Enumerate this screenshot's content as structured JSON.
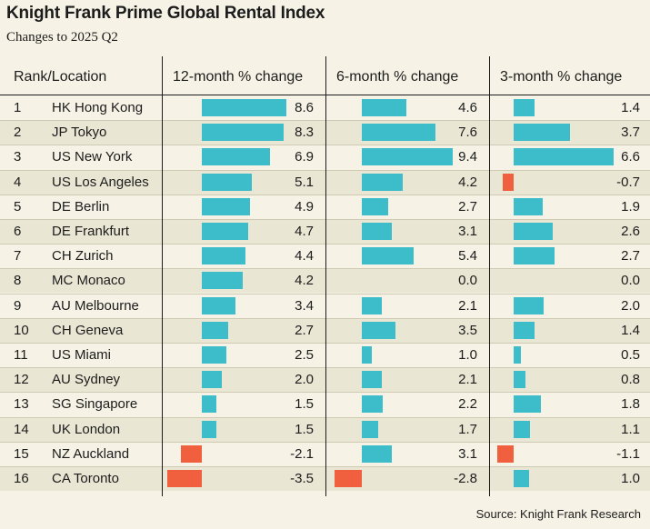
{
  "title": "Knight Frank Prime Global Rental Index",
  "subtitle": "Changes to 2025 Q2",
  "source": "Source: Knight Frank Research",
  "colors": {
    "positive": "#3cbdc9",
    "negative": "#f0603f"
  },
  "chart_data": {
    "type": "table",
    "columns": [
      "Rank/Location",
      "12-month % change",
      "6-month % change",
      "3-month % change"
    ],
    "rows": [
      {
        "rank": "1",
        "location": "HK Hong Kong",
        "m12": 8.6,
        "m6": 4.6,
        "m3": 1.4,
        "m12_label": "8.6",
        "m6_label": "4.6",
        "m3_label": "1.4"
      },
      {
        "rank": "2",
        "location": "JP Tokyo",
        "m12": 8.3,
        "m6": 7.6,
        "m3": 3.7,
        "m12_label": "8.3",
        "m6_label": "7.6",
        "m3_label": "3.7"
      },
      {
        "rank": "3",
        "location": "US New York",
        "m12": 6.9,
        "m6": 9.4,
        "m3": 6.6,
        "m12_label": "6.9",
        "m6_label": "9.4",
        "m3_label": "6.6"
      },
      {
        "rank": "4",
        "location": "US Los Angeles",
        "m12": 5.1,
        "m6": 4.2,
        "m3": -0.7,
        "m12_label": "5.1",
        "m6_label": "4.2",
        "m3_label": "-0.7"
      },
      {
        "rank": "5",
        "location": "DE Berlin",
        "m12": 4.9,
        "m6": 2.7,
        "m3": 1.9,
        "m12_label": "4.9",
        "m6_label": "2.7",
        "m3_label": "1.9"
      },
      {
        "rank": "6",
        "location": "DE Frankfurt",
        "m12": 4.7,
        "m6": 3.1,
        "m3": 2.6,
        "m12_label": "4.7",
        "m6_label": "3.1",
        "m3_label": "2.6"
      },
      {
        "rank": "7",
        "location": "CH Zurich",
        "m12": 4.4,
        "m6": 5.4,
        "m3": 2.7,
        "m12_label": "4.4",
        "m6_label": "5.4",
        "m3_label": "2.7"
      },
      {
        "rank": "8",
        "location": "MC Monaco",
        "m12": 4.2,
        "m6": 0.0,
        "m3": 0.0,
        "m12_label": "4.2",
        "m6_label": "0.0",
        "m3_label": "0.0"
      },
      {
        "rank": "9",
        "location": "AU Melbourne",
        "m12": 3.4,
        "m6": 2.1,
        "m3": 2.0,
        "m12_label": "3.4",
        "m6_label": "2.1",
        "m3_label": "2.0"
      },
      {
        "rank": "10",
        "location": "CH Geneva",
        "m12": 2.7,
        "m6": 3.5,
        "m3": 1.4,
        "m12_label": "2.7",
        "m6_label": "3.5",
        "m3_label": "1.4"
      },
      {
        "rank": "11",
        "location": "US Miami",
        "m12": 2.5,
        "m6": 1.0,
        "m3": 0.5,
        "m12_label": "2.5",
        "m6_label": "1.0",
        "m3_label": "0.5"
      },
      {
        "rank": "12",
        "location": "AU Sydney",
        "m12": 2.0,
        "m6": 2.1,
        "m3": 0.8,
        "m12_label": "2.0",
        "m6_label": "2.1",
        "m3_label": "0.8"
      },
      {
        "rank": "13",
        "location": "SG Singapore",
        "m12": 1.5,
        "m6": 2.2,
        "m3": 1.8,
        "m12_label": "1.5",
        "m6_label": "2.2",
        "m3_label": "1.8"
      },
      {
        "rank": "14",
        "location": "UK London",
        "m12": 1.5,
        "m6": 1.7,
        "m3": 1.1,
        "m12_label": "1.5",
        "m6_label": "1.7",
        "m3_label": "1.1"
      },
      {
        "rank": "15",
        "location": "NZ Auckland",
        "m12": -2.1,
        "m6": 3.1,
        "m3": -1.1,
        "m12_label": "-2.1",
        "m6_label": "3.1",
        "m3_label": "-1.1"
      },
      {
        "rank": "16",
        "location": "CA Toronto",
        "m12": -3.5,
        "m6": -2.8,
        "m3": 1.0,
        "m12_label": "-3.5",
        "m6_label": "-2.8",
        "m3_label": "1.0"
      }
    ]
  }
}
